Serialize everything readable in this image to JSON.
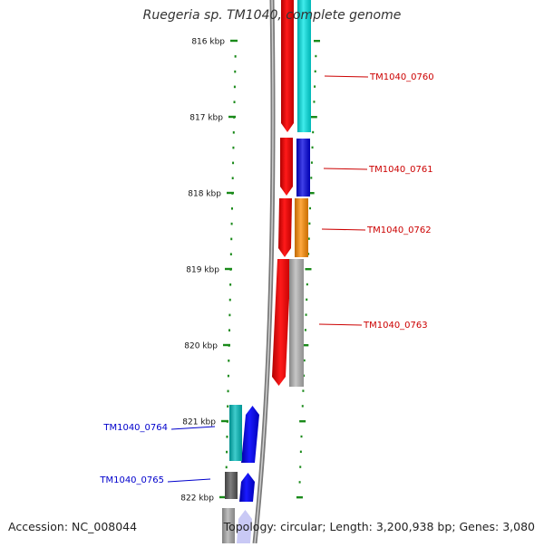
{
  "title": "Ruegeria sp. TM1040, complete genome",
  "footer": {
    "accession_label": "Accession:",
    "accession": "NC_008044",
    "topology_label": "Topology:",
    "topology": "circular",
    "length_label": "Length:",
    "length": "3,200,938 bp",
    "genes_label": "Genes:",
    "genes": "3,080"
  },
  "ruler": {
    "unit": "kbp",
    "ticks": [
      816,
      817,
      818,
      819,
      820,
      821,
      822
    ]
  },
  "genes": [
    {
      "label": "TM1040_0760",
      "label_color": "#cc0000",
      "strand": "reverse",
      "color": "#00e5e5",
      "start_kbp": 815.75,
      "end_kbp": 817.2
    },
    {
      "label": "TM1040_0761",
      "label_color": "#cc0000",
      "strand": "reverse",
      "color": "#0000e0",
      "start_kbp": 817.25,
      "end_kbp": 818.05
    },
    {
      "label": "TM1040_0762",
      "label_color": "#cc0000",
      "strand": "reverse",
      "color": "#ff8c00",
      "start_kbp": 818.05,
      "end_kbp": 818.85
    },
    {
      "label": "TM1040_0763",
      "label_color": "#cc0000",
      "strand": "reverse",
      "color": "#b4b4b4",
      "start_kbp": 818.85,
      "end_kbp": 820.55
    },
    {
      "label": "TM1040_0764",
      "label_color": "#0000cc",
      "strand": "forward",
      "color": "#00bcbc",
      "start_kbp": 820.8,
      "end_kbp": 821.5
    },
    {
      "label": "TM1040_0765",
      "label_color": "#0000cc",
      "strand": "forward",
      "color": "#555555",
      "start_kbp": 821.6,
      "end_kbp": 822.0
    }
  ]
}
